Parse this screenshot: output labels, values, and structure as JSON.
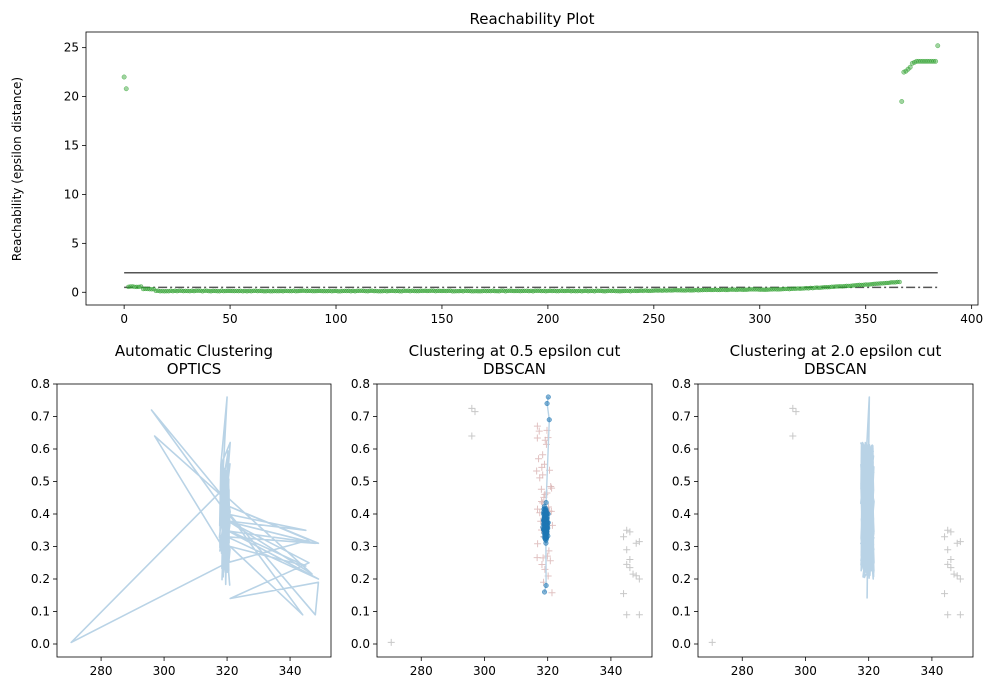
{
  "chart_data": [
    {
      "id": "reach",
      "type": "scatter",
      "title": "Reachability Plot",
      "title_lines": [
        "Reachability Plot"
      ],
      "xlabel": "",
      "ylabel": "Reachability (epsilon distance)",
      "xlim": [
        -18,
        403
      ],
      "ylim": [
        -1.3,
        26.6
      ],
      "xticks": [
        0,
        50,
        100,
        150,
        200,
        250,
        300,
        350,
        400
      ],
      "yticks": [
        0,
        5,
        10,
        15,
        20,
        25
      ],
      "point_color": "#2ca02c",
      "reference_lines": [
        {
          "y": 2.0,
          "style": "solid",
          "color": "#555555"
        },
        {
          "y": 0.5,
          "style": "dash-dot",
          "color": "#555555"
        }
      ],
      "reachability_points": [
        {
          "x": 0,
          "y": 22.0
        },
        {
          "x": 1,
          "y": 20.8
        },
        {
          "x": 367,
          "y": 19.5
        },
        {
          "x": 368,
          "y": 22.5
        },
        {
          "x": 369,
          "y": 22.6
        },
        {
          "x": 370,
          "y": 22.8
        },
        {
          "x": 371,
          "y": 23.0
        },
        {
          "x": 372,
          "y": 23.4
        },
        {
          "x": 373,
          "y": 23.5
        },
        {
          "x": 374,
          "y": 23.6
        },
        {
          "x": 375,
          "y": 23.6
        },
        {
          "x": 376,
          "y": 23.6
        },
        {
          "x": 377,
          "y": 23.6
        },
        {
          "x": 378,
          "y": 23.6
        },
        {
          "x": 379,
          "y": 23.6
        },
        {
          "x": 380,
          "y": 23.6
        },
        {
          "x": 381,
          "y": 23.6
        },
        {
          "x": 382,
          "y": 23.6
        },
        {
          "x": 383,
          "y": 23.6
        },
        {
          "x": 384,
          "y": 25.2
        }
      ]
    },
    {
      "id": "optics",
      "type": "line",
      "title": "Automatic Clustering\nOPTICS",
      "title_lines": [
        "Automatic Clustering",
        "OPTICS"
      ],
      "xlim": [
        266,
        353
      ],
      "ylim": [
        -0.04,
        0.8
      ],
      "xticks": [
        280,
        300,
        320,
        340
      ],
      "yticks": [
        0.0,
        0.1,
        0.2,
        0.3,
        0.4,
        0.5,
        0.6,
        0.7,
        0.8
      ],
      "line_color": "#b9d3e6"
    },
    {
      "id": "dbscan05",
      "type": "scatter",
      "title": "Clustering at 0.5 epsilon cut\nDBSCAN",
      "title_lines": [
        "Clustering at 0.5 epsilon cut",
        "DBSCAN"
      ],
      "xlim": [
        266,
        353
      ],
      "ylim": [
        -0.04,
        0.8
      ],
      "xticks": [
        280,
        300,
        320,
        340
      ],
      "yticks": [
        0.0,
        0.1,
        0.2,
        0.3,
        0.4,
        0.5,
        0.6,
        0.7,
        0.8
      ],
      "cluster_color": "#1f77b4",
      "noise_color": "#c8c8c8"
    },
    {
      "id": "dbscan20",
      "type": "line",
      "title": "Clustering at 2.0 epsilon cut\nDBSCAN",
      "title_lines": [
        "Clustering at 2.0 epsilon cut",
        "DBSCAN"
      ],
      "xlim": [
        266,
        353
      ],
      "ylim": [
        -0.04,
        0.8
      ],
      "xticks": [
        280,
        300,
        320,
        340
      ],
      "yticks": [
        0.0,
        0.1,
        0.2,
        0.3,
        0.4,
        0.5,
        0.6,
        0.7,
        0.8
      ],
      "line_color": "#b9d3e6",
      "noise_color": "#c8c8c8"
    }
  ],
  "noise_points": [
    {
      "x": 270.5,
      "y": 0.005
    },
    {
      "x": 296.0,
      "y": 0.725
    },
    {
      "x": 297.0,
      "y": 0.715
    },
    {
      "x": 296.0,
      "y": 0.64
    },
    {
      "x": 345.0,
      "y": 0.35
    },
    {
      "x": 344.0,
      "y": 0.33
    },
    {
      "x": 346.0,
      "y": 0.345
    },
    {
      "x": 348.0,
      "y": 0.31
    },
    {
      "x": 349.0,
      "y": 0.315
    },
    {
      "x": 345.0,
      "y": 0.29
    },
    {
      "x": 346.0,
      "y": 0.26
    },
    {
      "x": 345.0,
      "y": 0.245
    },
    {
      "x": 346.0,
      "y": 0.235
    },
    {
      "x": 347.0,
      "y": 0.215
    },
    {
      "x": 349.0,
      "y": 0.2
    },
    {
      "x": 348.0,
      "y": 0.21
    },
    {
      "x": 344.0,
      "y": 0.155
    },
    {
      "x": 345.0,
      "y": 0.09
    },
    {
      "x": 349.0,
      "y": 0.09
    }
  ]
}
